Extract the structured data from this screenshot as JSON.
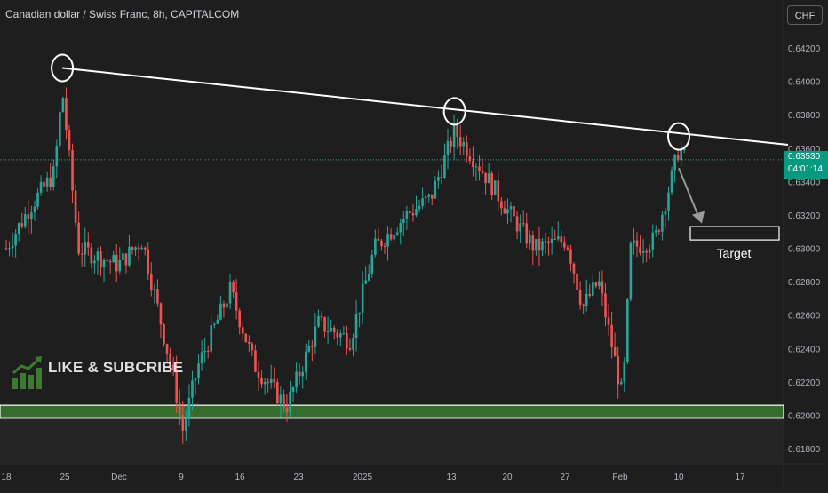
{
  "header": {
    "title": "Canadian dollar / Swiss Franc, 8h, CAPITALCOM",
    "currency_button": "CHF"
  },
  "price_tag": {
    "price": "0.63530",
    "countdown": "04:01:14",
    "hidden_tick": "0.63400"
  },
  "watermark": {
    "text": "LIKE & SUBCRIBE"
  },
  "annotations": {
    "target_label": "Target"
  },
  "colors": {
    "background": "#1e1e1e",
    "up": "#26a69a",
    "down": "#ef5350",
    "trendline": "#ffffff",
    "support_zone": "#3c7a32",
    "price_tag": "#089981"
  },
  "chart_data": {
    "type": "candlestick",
    "title": "Canadian dollar / Swiss Franc, 8h, CAPITALCOM",
    "ylim": [
      0.6175,
      0.6435
    ],
    "y_ticks": [
      "0.64200",
      "0.64000",
      "0.63800",
      "0.63600",
      "0.63200",
      "0.63000",
      "0.62800",
      "0.62600",
      "0.62400",
      "0.62200",
      "0.62000",
      "0.61800"
    ],
    "x_ticks": [
      "18",
      "25",
      "Dec",
      "9",
      "16",
      "23",
      "2025",
      "13",
      "20",
      "27",
      "Feb",
      "10",
      "17"
    ],
    "last_price": 0.6353,
    "grid": false,
    "trendline": {
      "start": {
        "x": "Nov 25",
        "y": 0.6408
      },
      "end": {
        "x": "Feb 17+",
        "y": 0.6362
      }
    },
    "support_zone": [
      0.6198,
      0.6206
    ],
    "target_zone": [
      0.6305,
      0.6313
    ],
    "touch_points": [
      {
        "x": "Nov 25",
        "y": 0.6408
      },
      {
        "x": "Jan 13",
        "y": 0.6382
      },
      {
        "x": "Feb 10",
        "y": 0.6367
      }
    ],
    "close_path": [
      {
        "x": "Nov 18",
        "y": 0.63
      },
      {
        "x": "Nov 21",
        "y": 0.6325
      },
      {
        "x": "Nov 24",
        "y": 0.6345
      },
      {
        "x": "Nov 25",
        "y": 0.6395
      },
      {
        "x": "Nov 27",
        "y": 0.63
      },
      {
        "x": "Dec 2",
        "y": 0.629
      },
      {
        "x": "Dec 5",
        "y": 0.6305
      },
      {
        "x": "Dec 9",
        "y": 0.622
      },
      {
        "x": "Dec 10",
        "y": 0.619
      },
      {
        "x": "Dec 12",
        "y": 0.623
      },
      {
        "x": "Dec 16",
        "y": 0.6275
      },
      {
        "x": "Dec 19",
        "y": 0.623
      },
      {
        "x": "Dec 23",
        "y": 0.6205
      },
      {
        "x": "Dec 27",
        "y": 0.6255
      },
      {
        "x": "Dec 31",
        "y": 0.6245
      },
      {
        "x": "Jan 3",
        "y": 0.63
      },
      {
        "x": "Jan 7",
        "y": 0.632
      },
      {
        "x": "Jan 10",
        "y": 0.633
      },
      {
        "x": "Jan 13",
        "y": 0.637
      },
      {
        "x": "Jan 16",
        "y": 0.635
      },
      {
        "x": "Jan 20",
        "y": 0.632
      },
      {
        "x": "Jan 23",
        "y": 0.63
      },
      {
        "x": "Jan 27",
        "y": 0.6305
      },
      {
        "x": "Jan 29",
        "y": 0.6265
      },
      {
        "x": "Jan 31",
        "y": 0.628
      },
      {
        "x": "Feb 3",
        "y": 0.621
      },
      {
        "x": "Feb 4",
        "y": 0.63
      },
      {
        "x": "Feb 7",
        "y": 0.6305
      },
      {
        "x": "Feb 9",
        "y": 0.634
      },
      {
        "x": "Feb 10",
        "y": 0.636
      },
      {
        "x": "Feb 11",
        "y": 0.6353
      }
    ]
  }
}
